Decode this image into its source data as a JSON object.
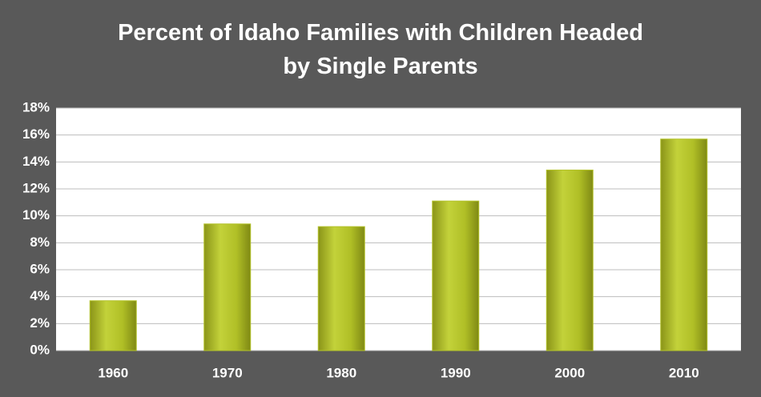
{
  "chart_data": {
    "type": "bar",
    "title": "Percent of Idaho Families with Children Headed by Single Parents",
    "categories": [
      "1960",
      "1970",
      "1980",
      "1990",
      "2000",
      "2010"
    ],
    "values": [
      3.7,
      9.4,
      9.2,
      11.1,
      13.4,
      15.7
    ],
    "color": "#b3c22a",
    "ylim": [
      0,
      18
    ],
    "yticks": [
      {
        "value": 0,
        "label": "0%"
      },
      {
        "value": 2,
        "label": "2%"
      },
      {
        "value": 4,
        "label": "4%"
      },
      {
        "value": 6,
        "label": "6%"
      },
      {
        "value": 8,
        "label": "8%"
      },
      {
        "value": 10,
        "label": "10%"
      },
      {
        "value": 12,
        "label": "12%"
      },
      {
        "value": 14,
        "label": "14%"
      },
      {
        "value": 16,
        "label": "16%"
      },
      {
        "value": 18,
        "label": "18%"
      }
    ],
    "grid": true
  }
}
